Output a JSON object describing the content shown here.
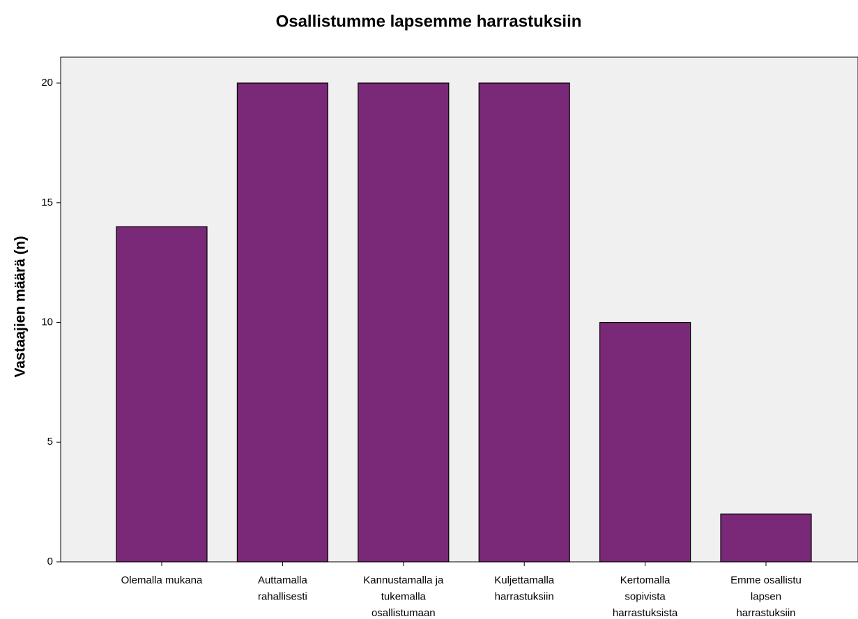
{
  "chart_data": {
    "type": "bar",
    "title": "Osallistumme lapsemme harrastuksiin",
    "y_label": "Vastaajien määrä (n)",
    "categories": [
      "Olemalla mukana",
      "Auttamalla\nrahallisesti",
      "Kannustamalla ja\ntukemalla\nosallistumaan",
      "Kuljettamalla\nharrastuksiin",
      "Kertomalla\nsopivista\nharrastuksista",
      "Emme osallistu\nlapsen\nharrastuksiin"
    ],
    "values": [
      14,
      20,
      20,
      20,
      10,
      2
    ],
    "color": "#7a2878",
    "ylim": [
      0,
      21.08
    ],
    "yticks": [
      0,
      5,
      10,
      15,
      20
    ],
    "grid": false
  }
}
